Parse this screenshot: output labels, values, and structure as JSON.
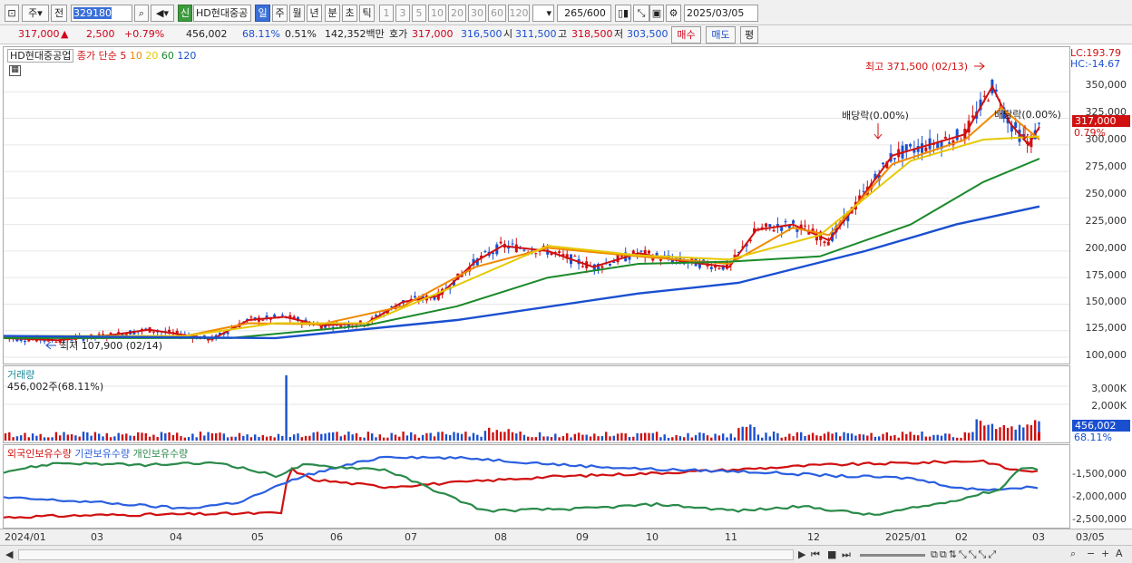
{
  "toolbar": {
    "market_type": "주",
    "prev_label": "전",
    "code": "329180",
    "credit_badge": "신",
    "stock_name": "HD현대중공",
    "periods": [
      "일",
      "주",
      "월",
      "년",
      "분",
      "초",
      "틱"
    ],
    "selected_period": "일",
    "numbers": [
      "1",
      "3",
      "5",
      "10",
      "20",
      "30",
      "60",
      "120"
    ],
    "count": "265",
    "count_max": "/600",
    "date": "2025/03/05"
  },
  "info": {
    "price": "317,000",
    "arrow": "▲",
    "change": "2,500",
    "change_pct": "+0.79%",
    "volume": "456,002",
    "volume_ratio": "68.11%",
    "turnover": "0.51%",
    "amount": "142,352백만",
    "hoga_label": "호가",
    "bid": "317,000",
    "ask": "316,500",
    "open_label": "시",
    "open": "311,500",
    "high_label": "고",
    "high": "318,500",
    "low_label": "저",
    "low": "303,500",
    "buy_label": "매수",
    "sell_label": "매도",
    "eval_label": "평"
  },
  "price_pane": {
    "legend_name": "HD현대중공업",
    "legend_ma": "종가 단순",
    "ma_periods": [
      "5",
      "10",
      "20",
      "60",
      "120"
    ],
    "ma_colors": [
      "#d01010",
      "#f08a00",
      "#e6c800",
      "#1a8a2a",
      "#1a4fd0"
    ],
    "lc": "LC:193.79",
    "hc": "HC:-14.67",
    "yticks": [
      "350,000",
      "325,000",
      "300,000",
      "275,000",
      "250,000",
      "225,000",
      "200,000",
      "175,000",
      "150,000",
      "125,000",
      "100,000"
    ],
    "last_price_tag": "317,000",
    "last_pct_tag": "0.79%",
    "high_annotation": "최고 371,500 (02/13)",
    "low_annotation": "최저 107,900 (02/14)",
    "dividend_1": "배당락(0.00%)",
    "dividend_2": "배당락(0.00%)"
  },
  "volume_pane": {
    "title": "거래량",
    "value": "456,002주(68.11%)",
    "yticks": [
      "3,000K",
      "2,000K"
    ],
    "last_tag": "456,002",
    "last_pct": "68.11%"
  },
  "holding_pane": {
    "legend": [
      "외국인보유수량",
      "기관보유수량",
      "개인보유수량"
    ],
    "colors": [
      "#d01010",
      "#2a5fe0",
      "#2a8a4a"
    ],
    "yticks": [
      "-1,500,000",
      "-2,000,000",
      "-2,500,000"
    ]
  },
  "xaxis": {
    "labels": [
      "2024/01",
      "03",
      "04",
      "05",
      "06",
      "07",
      "08",
      "09",
      "10",
      "11",
      "12",
      "2025/01",
      "02",
      "03",
      "03/05"
    ]
  },
  "chart_data": {
    "type": "candlestick",
    "title": "HD현대중공업",
    "series": [
      {
        "name": "5",
        "points": [
          [
            0,
            118000
          ],
          [
            60,
            116000
          ],
          [
            120,
            121000
          ],
          [
            160,
            126000
          ],
          [
            230,
            117000
          ],
          [
            270,
            135000
          ],
          [
            310,
            138000
          ],
          [
            350,
            130000
          ],
          [
            400,
            132000
          ],
          [
            440,
            152000
          ],
          [
            480,
            158000
          ],
          [
            520,
            190000
          ],
          [
            550,
            205000
          ],
          [
            600,
            200000
          ],
          [
            650,
            185000
          ],
          [
            700,
            198000
          ],
          [
            750,
            190000
          ],
          [
            800,
            185000
          ],
          [
            830,
            220000
          ],
          [
            870,
            225000
          ],
          [
            910,
            210000
          ],
          [
            950,
            255000
          ],
          [
            980,
            290000
          ],
          [
            1020,
            300000
          ],
          [
            1060,
            310000
          ],
          [
            1090,
            355000
          ],
          [
            1110,
            320000
          ],
          [
            1130,
            300000
          ],
          [
            1142,
            317000
          ]
        ]
      },
      {
        "name": "10",
        "points": [
          [
            0,
            119000
          ],
          [
            100,
            118000
          ],
          [
            200,
            120000
          ],
          [
            270,
            132000
          ],
          [
            350,
            131000
          ],
          [
            440,
            148000
          ],
          [
            520,
            185000
          ],
          [
            600,
            203000
          ],
          [
            700,
            195000
          ],
          [
            800,
            188000
          ],
          [
            870,
            222000
          ],
          [
            910,
            215000
          ],
          [
            980,
            282000
          ],
          [
            1060,
            305000
          ],
          [
            1100,
            335000
          ],
          [
            1142,
            305000
          ]
        ]
      },
      {
        "name": "20",
        "points": [
          [
            0,
            120000
          ],
          [
            200,
            120000
          ],
          [
            300,
            132000
          ],
          [
            400,
            132000
          ],
          [
            500,
            168000
          ],
          [
            600,
            205000
          ],
          [
            700,
            196000
          ],
          [
            800,
            192000
          ],
          [
            900,
            215000
          ],
          [
            1000,
            285000
          ],
          [
            1080,
            305000
          ],
          [
            1142,
            308000
          ]
        ]
      },
      {
        "name": "60",
        "points": [
          [
            0,
            118000
          ],
          [
            250,
            118000
          ],
          [
            400,
            130000
          ],
          [
            500,
            148000
          ],
          [
            600,
            175000
          ],
          [
            700,
            188000
          ],
          [
            800,
            190000
          ],
          [
            900,
            195000
          ],
          [
            1000,
            225000
          ],
          [
            1080,
            265000
          ],
          [
            1142,
            287000
          ]
        ]
      },
      {
        "name": "120",
        "points": [
          [
            0,
            120000
          ],
          [
            300,
            118000
          ],
          [
            500,
            135000
          ],
          [
            700,
            160000
          ],
          [
            810,
            170000
          ],
          [
            950,
            200000
          ],
          [
            1050,
            225000
          ],
          [
            1142,
            242000
          ]
        ]
      }
    ],
    "volume_last": 456002,
    "ylim": [
      100000,
      375000
    ]
  }
}
